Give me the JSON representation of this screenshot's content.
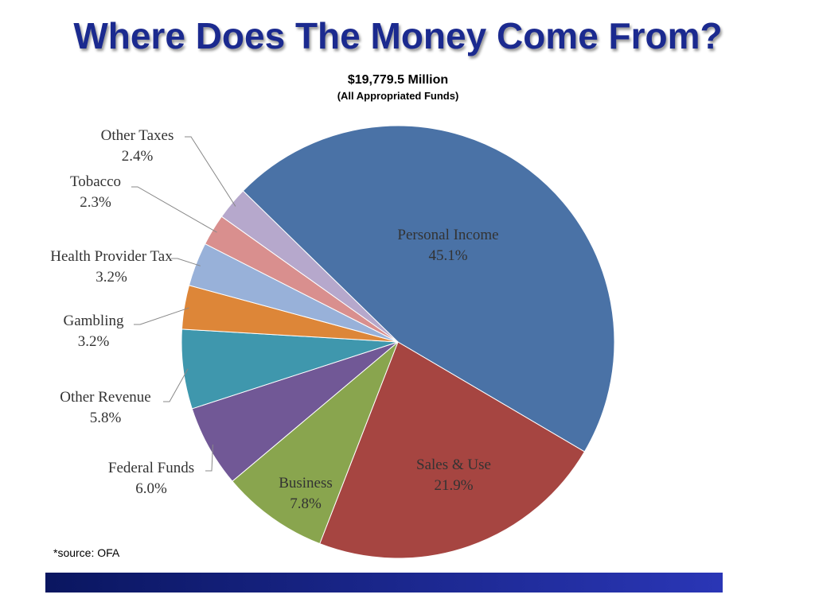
{
  "chart_data": {
    "type": "pie",
    "title": "Where Does The Money Come From?",
    "subtitle": "$19,779.5 Million",
    "subtitle2": "(All Appropriated Funds)",
    "source": "*source: OFA",
    "categories": [
      "Personal Income",
      "Sales & Use",
      "Business",
      "Federal Funds",
      "Other Revenue",
      "Gambling",
      "Health Provider Tax",
      "Tobacco",
      "Other Taxes"
    ],
    "values": [
      45.1,
      21.9,
      7.8,
      6.0,
      5.8,
      3.2,
      3.2,
      2.3,
      2.4
    ],
    "value_labels": [
      "45.1%",
      "21.9%",
      "7.8%",
      "6.0%",
      "5.8%",
      "3.2%",
      "3.2%",
      "2.3%",
      "2.4%"
    ],
    "colors": [
      "#4a72a6",
      "#a64541",
      "#89a54e",
      "#715896",
      "#3f97ad",
      "#dd8638",
      "#98b1d9",
      "#d98f8e",
      "#b6a8cc"
    ]
  }
}
